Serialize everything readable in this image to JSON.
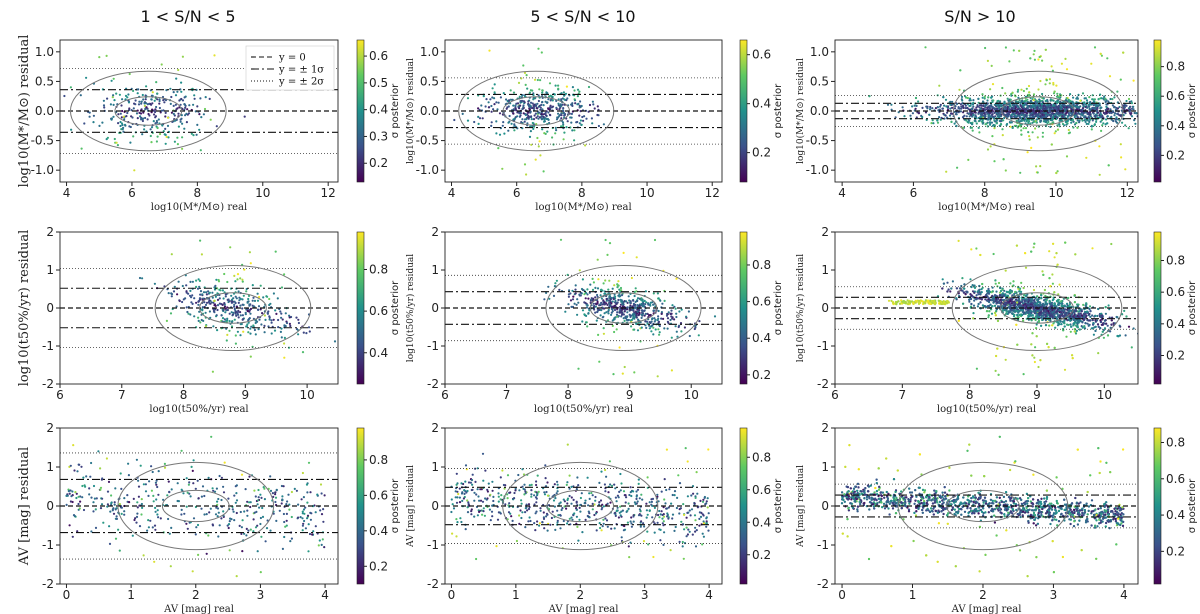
{
  "column_titles": [
    "1 < S/N < 5",
    "5 < S/N < 10",
    "S/N > 10"
  ],
  "legend": {
    "position": "top-right",
    "entries": [
      "y = 0",
      "y = ± 1σ",
      "y = ± 2σ"
    ]
  },
  "colormap": {
    "name": "viridis",
    "label": "σ posterior",
    "stops": [
      "#440154",
      "#3b528b",
      "#21918c",
      "#5ec962",
      "#fde725"
    ]
  },
  "chart_data": [
    {
      "type": "scatter",
      "panel": "r0c0",
      "xlabel": "log10(M*/M⊙) real",
      "ylabel": "log10(M*/M⊙) residual",
      "xlim": [
        3.8,
        12.3
      ],
      "ylim": [
        -1.2,
        1.2
      ],
      "xticks": [
        "4",
        "6",
        "8",
        "10",
        "12"
      ],
      "yticks": [
        "1.0",
        "0.5",
        "0.0",
        "-0.5",
        "-1.0"
      ],
      "sigma": 0.36,
      "cbar_range": [
        0.13,
        0.66
      ],
      "cbar_ticks": [
        "0.6",
        "0.5",
        "0.4",
        "0.3",
        "0.2"
      ],
      "n_points": 320,
      "x_center": 6.5,
      "x_spread": 0.9,
      "y_spread": 0.25
    },
    {
      "type": "scatter",
      "panel": "r0c1",
      "xlabel": "log10(M*/M⊙) real",
      "ylabel": "log10(M*/M⊙) residual",
      "xlim": [
        3.8,
        12.3
      ],
      "ylim": [
        -1.2,
        1.2
      ],
      "xticks": [
        "4",
        "6",
        "8",
        "10",
        "12"
      ],
      "yticks": [
        "1.0",
        "0.5",
        "0.0",
        "-0.5",
        "-1.0"
      ],
      "sigma": 0.28,
      "cbar_range": [
        0.08,
        0.66
      ],
      "cbar_ticks": [
        "0.6",
        "0.4",
        "0.2"
      ],
      "n_points": 480,
      "x_center": 6.6,
      "x_spread": 0.8,
      "y_spread": 0.2
    },
    {
      "type": "scatter",
      "panel": "r0c2",
      "xlabel": "log10(M*/M⊙) real",
      "ylabel": "log10(M*/M⊙) residual",
      "xlim": [
        3.8,
        12.3
      ],
      "ylim": [
        -1.2,
        1.2
      ],
      "xticks": [
        "4",
        "6",
        "8",
        "10",
        "12"
      ],
      "yticks": [
        "1.0",
        "0.5",
        "0.0",
        "-0.5",
        "-1.0"
      ],
      "sigma": 0.13,
      "cbar_range": [
        0.02,
        0.98
      ],
      "cbar_ticks": [
        "0.8",
        "0.6",
        "0.4",
        "0.2"
      ],
      "n_points": 2200,
      "x_center": 9.5,
      "x_spread": 1.4,
      "y_spread": 0.12
    },
    {
      "type": "scatter",
      "panel": "r1c0",
      "xlabel": "log10(t50%/yr) real",
      "ylabel": "log10(t50%/yr) residual",
      "xlim": [
        6,
        10.5
      ],
      "ylim": [
        -2,
        2
      ],
      "xticks": [
        "6",
        "7",
        "8",
        "9",
        "10"
      ],
      "yticks": [
        "2",
        "1",
        "0",
        "-1",
        "-2"
      ],
      "sigma": 0.52,
      "cbar_range": [
        0.25,
        0.98
      ],
      "cbar_ticks": [
        "0.8",
        "0.6",
        "0.4"
      ],
      "n_points": 420,
      "x_center": 8.8,
      "x_spread": 0.5,
      "y_spread": 0.3
    },
    {
      "type": "scatter",
      "panel": "r1c1",
      "xlabel": "log10(t50%/yr) real",
      "ylabel": "log10(t50%/yr) residual",
      "xlim": [
        6,
        10.5
      ],
      "ylim": [
        -2,
        2
      ],
      "xticks": [
        "6",
        "7",
        "8",
        "9",
        "10"
      ],
      "yticks": [
        "2",
        "1",
        "0",
        "-1",
        "-2"
      ],
      "sigma": 0.43,
      "cbar_range": [
        0.15,
        0.98
      ],
      "cbar_ticks": [
        "0.8",
        "0.6",
        "0.4",
        "0.2"
      ],
      "n_points": 600,
      "x_center": 8.9,
      "x_spread": 0.45,
      "y_spread": 0.25
    },
    {
      "type": "scatter",
      "panel": "r1c2",
      "xlabel": "log10(t50%/yr) real",
      "ylabel": "log10(t50%/yr) residual",
      "xlim": [
        6,
        10.5
      ],
      "ylim": [
        -2,
        2
      ],
      "xticks": [
        "6",
        "7",
        "8",
        "9",
        "10"
      ],
      "yticks": [
        "2",
        "1",
        "0",
        "-1",
        "-2"
      ],
      "sigma": 0.28,
      "cbar_range": [
        0.02,
        0.98
      ],
      "cbar_ticks": [
        "0.8",
        "0.6",
        "0.4",
        "0.2"
      ],
      "n_points": 2200,
      "x_center": 9.0,
      "x_spread": 0.55,
      "y_spread": 0.18
    },
    {
      "type": "scatter",
      "panel": "r2c0",
      "xlabel": "AV [mag] real",
      "ylabel": "AV [mag] residual",
      "xlim": [
        -0.1,
        4.2
      ],
      "ylim": [
        -2,
        2
      ],
      "xticks": [
        "0",
        "1",
        "2",
        "3",
        "4"
      ],
      "yticks": [
        "2",
        "1",
        "0",
        "-1",
        "-2"
      ],
      "sigma": 0.68,
      "cbar_range": [
        0.1,
        0.98
      ],
      "cbar_ticks": [
        "0.8",
        "0.6",
        "0.4",
        "0.2"
      ],
      "n_points": 450,
      "x_center": 2.0,
      "x_spread": 1.1,
      "y_spread": 0.45
    },
    {
      "type": "scatter",
      "panel": "r2c1",
      "xlabel": "AV [mag] real",
      "ylabel": "AV [mag] residual",
      "xlim": [
        -0.1,
        4.2
      ],
      "ylim": [
        -2,
        2
      ],
      "xticks": [
        "0",
        "1",
        "2",
        "3",
        "4"
      ],
      "yticks": [
        "2",
        "1",
        "0",
        "-1",
        "-2"
      ],
      "sigma": 0.48,
      "cbar_range": [
        0.02,
        0.98
      ],
      "cbar_ticks": [
        "0.8",
        "0.6",
        "0.4",
        "0.2"
      ],
      "n_points": 650,
      "x_center": 2.0,
      "x_spread": 1.1,
      "y_spread": 0.35
    },
    {
      "type": "scatter",
      "panel": "r2c2",
      "xlabel": "AV [mag] real",
      "ylabel": "AV [mag] residual",
      "xlim": [
        -0.1,
        4.2
      ],
      "ylim": [
        -2,
        2
      ],
      "xticks": [
        "0",
        "1",
        "2",
        "3",
        "4"
      ],
      "yticks": [
        "2",
        "1",
        "0",
        "-1",
        "-2"
      ],
      "sigma": 0.28,
      "cbar_range": [
        0.02,
        0.88
      ],
      "cbar_ticks": [
        "0.8",
        "0.6",
        "0.4",
        "0.2"
      ],
      "n_points": 2400,
      "x_center": 2.0,
      "x_spread": 1.1,
      "y_spread": 0.15
    }
  ]
}
